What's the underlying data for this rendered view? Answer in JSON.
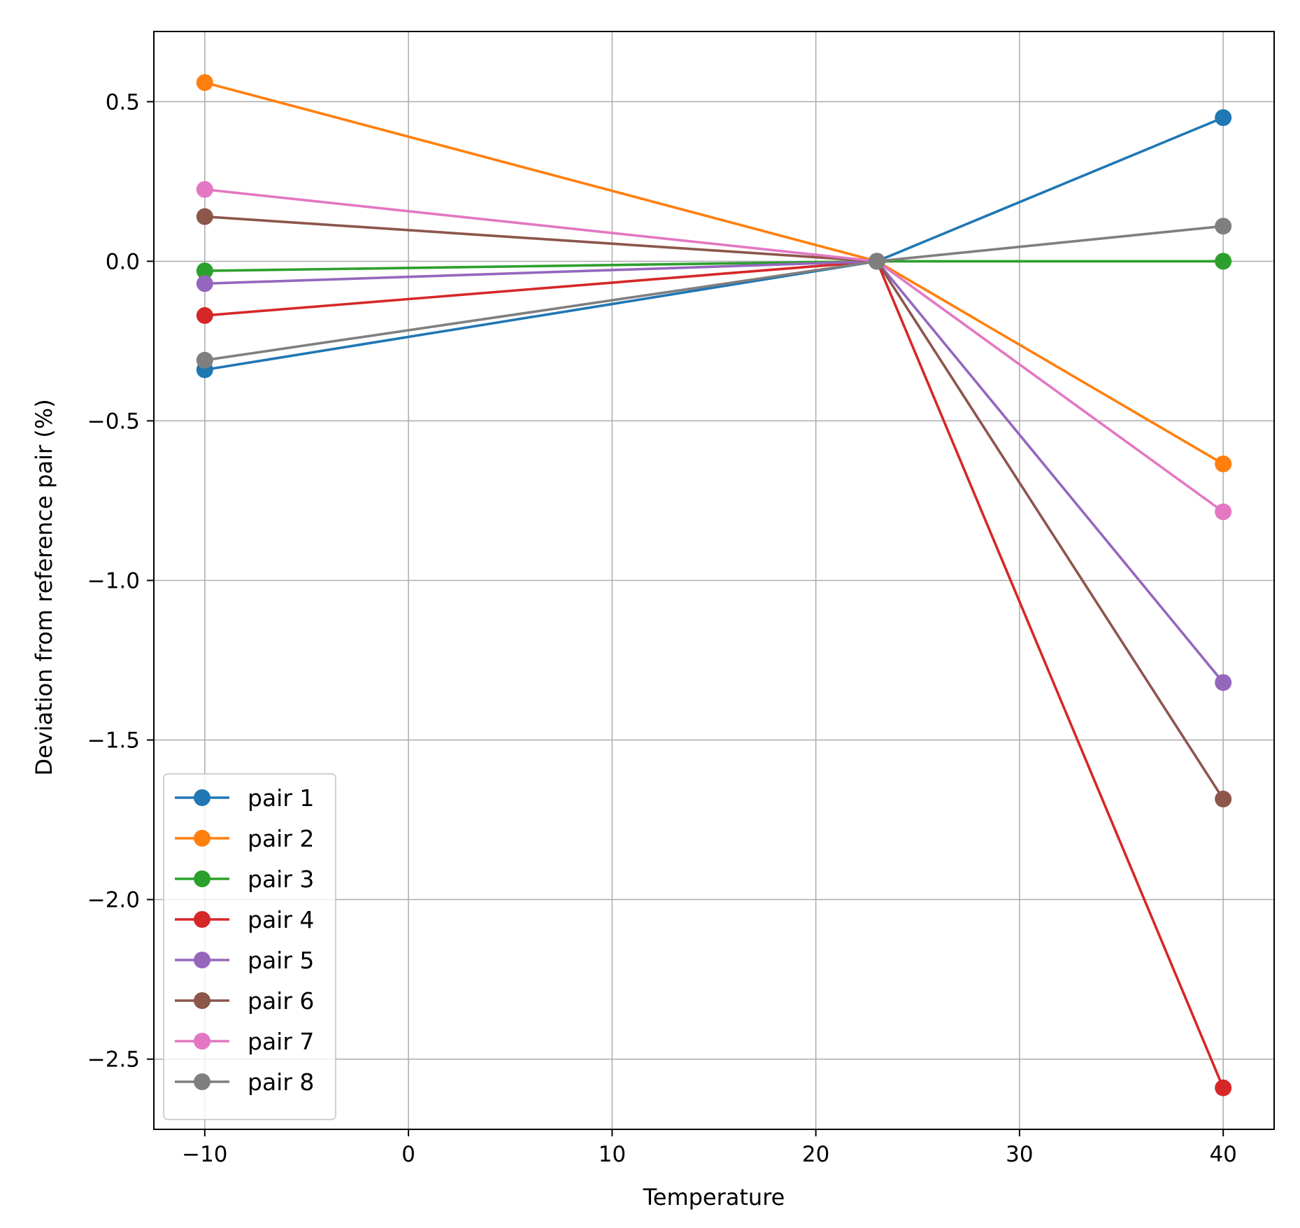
{
  "chart_data": {
    "type": "line",
    "title": "",
    "xlabel": "Temperature",
    "ylabel": "Deviation from reference pair (%)",
    "x": [
      -10,
      23,
      40
    ],
    "xlim": [
      -12.5,
      42.5
    ],
    "ylim": [
      -2.72,
      0.72
    ],
    "xticks": [
      -10,
      0,
      10,
      20,
      30,
      40
    ],
    "xtick_labels": [
      "−10",
      "0",
      "10",
      "20",
      "30",
      "40"
    ],
    "yticks": [
      0.5,
      0.0,
      -0.5,
      -1.0,
      -1.5,
      -2.0,
      -2.5
    ],
    "ytick_labels": [
      "0.5",
      "0.0",
      "−0.5",
      "−1.0",
      "−1.5",
      "−2.0",
      "−2.5"
    ],
    "grid": true,
    "legend_position": "lower-left",
    "markers": "circle",
    "series": [
      {
        "name": "pair 1",
        "color": "#1f77b4",
        "values": [
          -0.34,
          0.0,
          0.45
        ]
      },
      {
        "name": "pair 2",
        "color": "#ff7f0e",
        "values": [
          0.56,
          0.0,
          -0.635
        ]
      },
      {
        "name": "pair 3",
        "color": "#2ca02c",
        "values": [
          -0.03,
          0.0,
          0.0
        ]
      },
      {
        "name": "pair 4",
        "color": "#d62728",
        "values": [
          -0.17,
          0.0,
          -2.59
        ]
      },
      {
        "name": "pair 5",
        "color": "#9467bd",
        "values": [
          -0.07,
          0.0,
          -1.32
        ]
      },
      {
        "name": "pair 6",
        "color": "#8c564b",
        "values": [
          0.14,
          0.0,
          -1.685
        ]
      },
      {
        "name": "pair 7",
        "color": "#e377c2",
        "values": [
          0.225,
          0.0,
          -0.785
        ]
      },
      {
        "name": "pair 8",
        "color": "#7f7f7f",
        "values": [
          -0.31,
          0.0,
          0.11
        ]
      }
    ]
  }
}
